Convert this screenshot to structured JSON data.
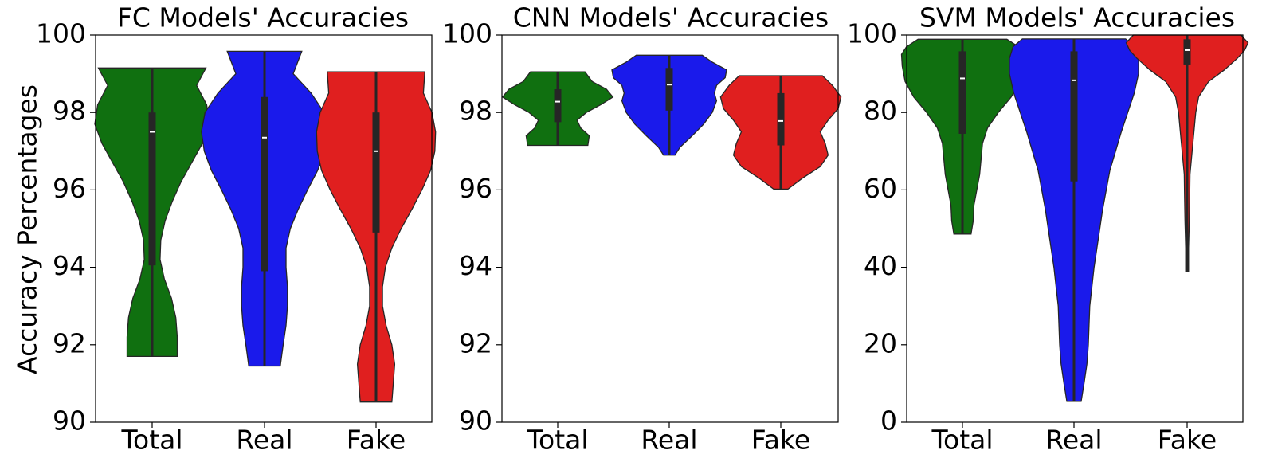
{
  "figure": {
    "ylabel": "Accuracy Percentages"
  },
  "colors": {
    "Total": "#107010",
    "Real": "#1a1aeb",
    "Fake": "#e01f1f",
    "box": "#262626",
    "median": "#ffffff"
  },
  "chart_data": [
    {
      "type": "violin",
      "title": "FC Models' Accuracies",
      "ylim": [
        90,
        100
      ],
      "yticks": [
        90,
        92,
        94,
        96,
        98,
        100
      ],
      "categories": [
        "Total",
        "Real",
        "Fake"
      ],
      "series": [
        {
          "category": "Total",
          "min": 91.7,
          "max": 99.15,
          "q1": 94.05,
          "median": 97.5,
          "q3": 98.0,
          "profile": [
            [
              91.7,
              0.35
            ],
            [
              92.2,
              0.35
            ],
            [
              92.7,
              0.33
            ],
            [
              93.2,
              0.27
            ],
            [
              93.7,
              0.17
            ],
            [
              94.2,
              0.11
            ],
            [
              94.7,
              0.12
            ],
            [
              95.2,
              0.18
            ],
            [
              95.7,
              0.28
            ],
            [
              96.2,
              0.4
            ],
            [
              96.7,
              0.55
            ],
            [
              97.2,
              0.7
            ],
            [
              97.7,
              0.8
            ],
            [
              98.2,
              0.76
            ],
            [
              98.7,
              0.62
            ],
            [
              99.15,
              0.75
            ]
          ]
        },
        {
          "category": "Real",
          "min": 91.45,
          "max": 99.58,
          "q1": 93.9,
          "median": 97.35,
          "q3": 98.4,
          "profile": [
            [
              91.45,
              0.22
            ],
            [
              92.0,
              0.26
            ],
            [
              92.5,
              0.3
            ],
            [
              93.0,
              0.32
            ],
            [
              93.5,
              0.32
            ],
            [
              94.0,
              0.3
            ],
            [
              94.5,
              0.3
            ],
            [
              95.0,
              0.36
            ],
            [
              95.5,
              0.47
            ],
            [
              96.0,
              0.6
            ],
            [
              96.5,
              0.74
            ],
            [
              97.0,
              0.84
            ],
            [
              97.5,
              0.88
            ],
            [
              98.0,
              0.83
            ],
            [
              98.5,
              0.65
            ],
            [
              99.0,
              0.4
            ],
            [
              99.58,
              0.52
            ]
          ]
        },
        {
          "category": "Fake",
          "min": 90.52,
          "max": 99.05,
          "q1": 94.9,
          "median": 97.0,
          "q3": 98.0,
          "profile": [
            [
              90.52,
              0.22
            ],
            [
              91.0,
              0.24
            ],
            [
              91.5,
              0.26
            ],
            [
              92.0,
              0.22
            ],
            [
              92.5,
              0.14
            ],
            [
              93.0,
              0.09
            ],
            [
              93.5,
              0.09
            ],
            [
              94.0,
              0.13
            ],
            [
              94.5,
              0.22
            ],
            [
              95.0,
              0.35
            ],
            [
              95.5,
              0.5
            ],
            [
              96.0,
              0.64
            ],
            [
              96.5,
              0.76
            ],
            [
              97.0,
              0.82
            ],
            [
              97.5,
              0.83
            ],
            [
              98.0,
              0.78
            ],
            [
              98.5,
              0.66
            ],
            [
              99.05,
              0.68
            ]
          ]
        }
      ]
    },
    {
      "type": "violin",
      "title": "CNN Models' Accuracies",
      "ylim": [
        90,
        100
      ],
      "yticks": [
        90,
        92,
        94,
        96,
        98,
        100
      ],
      "categories": [
        "Total",
        "Real",
        "Fake"
      ],
      "series": [
        {
          "category": "Total",
          "min": 97.15,
          "max": 99.05,
          "q1": 97.75,
          "median": 98.28,
          "q3": 98.6,
          "profile": [
            [
              97.15,
              0.42
            ],
            [
              97.4,
              0.44
            ],
            [
              97.6,
              0.32
            ],
            [
              97.8,
              0.27
            ],
            [
              98.0,
              0.4
            ],
            [
              98.2,
              0.6
            ],
            [
              98.4,
              0.77
            ],
            [
              98.6,
              0.68
            ],
            [
              98.8,
              0.48
            ],
            [
              99.05,
              0.38
            ]
          ]
        },
        {
          "category": "Real",
          "min": 96.9,
          "max": 99.48,
          "q1": 98.05,
          "median": 98.72,
          "q3": 99.15,
          "profile": [
            [
              96.9,
              0.08
            ],
            [
              97.1,
              0.15
            ],
            [
              97.4,
              0.32
            ],
            [
              97.7,
              0.48
            ],
            [
              98.0,
              0.6
            ],
            [
              98.3,
              0.66
            ],
            [
              98.5,
              0.63
            ],
            [
              98.7,
              0.66
            ],
            [
              98.9,
              0.78
            ],
            [
              99.1,
              0.8
            ],
            [
              99.3,
              0.6
            ],
            [
              99.48,
              0.46
            ]
          ]
        },
        {
          "category": "Fake",
          "min": 96.02,
          "max": 98.95,
          "q1": 97.15,
          "median": 97.78,
          "q3": 98.5,
          "profile": [
            [
              96.02,
              0.1
            ],
            [
              96.3,
              0.3
            ],
            [
              96.6,
              0.55
            ],
            [
              96.9,
              0.66
            ],
            [
              97.2,
              0.62
            ],
            [
              97.5,
              0.55
            ],
            [
              97.8,
              0.66
            ],
            [
              98.1,
              0.8
            ],
            [
              98.4,
              0.84
            ],
            [
              98.7,
              0.72
            ],
            [
              98.95,
              0.58
            ]
          ]
        }
      ]
    },
    {
      "type": "violin",
      "title": "SVM Models' Accuracies",
      "ylim": [
        0,
        100
      ],
      "yticks": [
        0,
        20,
        40,
        60,
        80,
        100
      ],
      "categories": [
        "Total",
        "Real",
        "Fake"
      ],
      "series": [
        {
          "category": "Total",
          "min": 48.6,
          "max": 98.9,
          "q1": 74.5,
          "median": 88.8,
          "q3": 95.8,
          "profile": [
            [
              48.6,
              0.12
            ],
            [
              52,
              0.15
            ],
            [
              56,
              0.16
            ],
            [
              60,
              0.2
            ],
            [
              64,
              0.24
            ],
            [
              68,
              0.26
            ],
            [
              72,
              0.28
            ],
            [
              76,
              0.35
            ],
            [
              80,
              0.5
            ],
            [
              84,
              0.68
            ],
            [
              88,
              0.8
            ],
            [
              92,
              0.84
            ],
            [
              95,
              0.85
            ],
            [
              97,
              0.78
            ],
            [
              98.9,
              0.62
            ]
          ]
        },
        {
          "category": "Real",
          "min": 5.4,
          "max": 99.0,
          "q1": 62.2,
          "median": 88.3,
          "q3": 95.8,
          "profile": [
            [
              5.4,
              0.1
            ],
            [
              10,
              0.14
            ],
            [
              15,
              0.18
            ],
            [
              20,
              0.2
            ],
            [
              25,
              0.21
            ],
            [
              30,
              0.22
            ],
            [
              35,
              0.25
            ],
            [
              40,
              0.28
            ],
            [
              45,
              0.32
            ],
            [
              50,
              0.36
            ],
            [
              55,
              0.4
            ],
            [
              60,
              0.45
            ],
            [
              65,
              0.5
            ],
            [
              70,
              0.58
            ],
            [
              75,
              0.66
            ],
            [
              80,
              0.75
            ],
            [
              85,
              0.84
            ],
            [
              90,
              0.9
            ],
            [
              94,
              0.9
            ],
            [
              97,
              0.85
            ],
            [
              99.0,
              0.72
            ]
          ]
        },
        {
          "category": "Fake",
          "min": 39.0,
          "max": 100.0,
          "q1": 92.4,
          "median": 96.1,
          "q3": 98.9,
          "profile": [
            [
              39.0,
              0.02
            ],
            [
              45,
              0.02
            ],
            [
              52,
              0.03
            ],
            [
              58,
              0.035
            ],
            [
              64,
              0.04
            ],
            [
              68,
              0.06
            ],
            [
              72,
              0.08
            ],
            [
              76,
              0.1
            ],
            [
              80,
              0.12
            ],
            [
              84,
              0.16
            ],
            [
              88,
              0.3
            ],
            [
              91,
              0.52
            ],
            [
              94,
              0.7
            ],
            [
              96,
              0.8
            ],
            [
              98,
              0.85
            ],
            [
              100,
              0.75
            ]
          ]
        }
      ]
    }
  ]
}
